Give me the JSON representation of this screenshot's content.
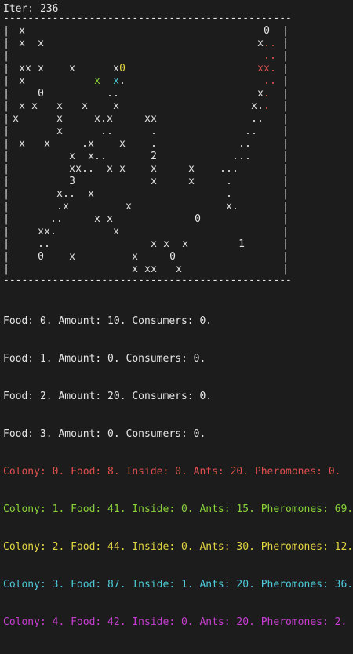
{
  "header": {
    "iteration_label": "Iter: 236"
  },
  "frame": {
    "top_border": "-----------------------------------------------",
    "bottom_border": "-----------------------------------------------",
    "side": "|"
  },
  "colors": {
    "default": "#e6e6e6",
    "colony0": "#e04f4f",
    "colony1": "#8ad23a",
    "colony2": "#e3d542",
    "colony3": "#4fc9d9",
    "colony4": "#c63fd0"
  },
  "grid_rows": [
    [
      "  x                                      0 ",
      "1000000000000000000000000000000000000000001 "
    ],
    [
      "  x  x                                  x.. ",
      "10010000000000000000000000000000000000000111 "
    ],
    [
      "                                         .. ",
      "00000000000000000000000000000000000000000110 "
    ],
    [
      "  xx x    x      x0                     xx. ",
      "02000000000000000030000000000000000000001110 "
    ],
    [
      "  x           x  x.                      .. ",
      "00000000000000200400000000000000000000000110 "
    ],
    [
      "     0          ..                      x. ",
      "00000000000000000000000000000000000000000110 "
    ],
    [
      "  x x   x   x    x                     x.. ",
      "00000000000000000000000000000000000000000111 "
    ],
    [
      " x      x     x.x     xx               .. ",
      "0000000000000000000000000000000000000000011 "
    ],
    [
      "        x      ..      .              .. ",
      "00000000000000000000000000000000000000000110 "
    ],
    [
      "  x   x     .x    x    .             .. ",
      "0000000000000000000000000000000000000000011 "
    ],
    [
      "          x  x..       2            ... ",
      "00000000000000000000000000000000000000000111 "
    ],
    [
      "          xx..  x x    x     x    ... ",
      "0000000000000000000000000000000000000111 "
    ],
    [
      "          3            x     x     . ",
      "00000000000000000000000000000000000000010 "
    ],
    [
      "        x..  x                     . ",
      "00000000000000000000000000000000000000010 "
    ],
    [
      "        .x         x               x. ",
      "000000000000000000000000000000000000000110 "
    ],
    [
      "       ..     x x             0      ",
      "000000000000000000000000000000000000000 "
    ],
    [
      "     xx.         x                   ",
      "000000000000000000000000000000000000000 "
    ],
    [
      "     ..                x x  x        1 ",
      "0000000000000000000000000000000000000001 "
    ],
    [
      "     0    x         x     0          ",
      "000000000000000000000000000000000000000 "
    ],
    [
      "                    x xx   x         ",
      "000000000000000000000000000000000000000 "
    ]
  ],
  "stats": {
    "food": [
      "Food: 0. Amount: 10. Consumers: 0.",
      "Food: 1. Amount: 0. Consumers: 0.",
      "Food: 2. Amount: 20. Consumers: 0.",
      "Food: 3. Amount: 0. Consumers: 0."
    ],
    "colonies": [
      {
        "text": "Colony: 0. Food: 8. Inside: 0. Ants: 20. Pheromones: 0.",
        "color": "#e04f4f"
      },
      {
        "text": "Colony: 1. Food: 41. Inside: 0. Ants: 15. Pheromones: 69.",
        "color": "#8ad23a"
      },
      {
        "text": "Colony: 2. Food: 44. Inside: 0. Ants: 30. Pheromones: 12.",
        "color": "#e3d542"
      },
      {
        "text": "Colony: 3. Food: 87. Inside: 1. Ants: 20. Pheromones: 36.",
        "color": "#4fc9d9"
      },
      {
        "text": "Colony: 4. Food: 42. Inside: 0. Ants: 20. Pheromones: 2.",
        "color": "#c63fd0"
      }
    ]
  }
}
